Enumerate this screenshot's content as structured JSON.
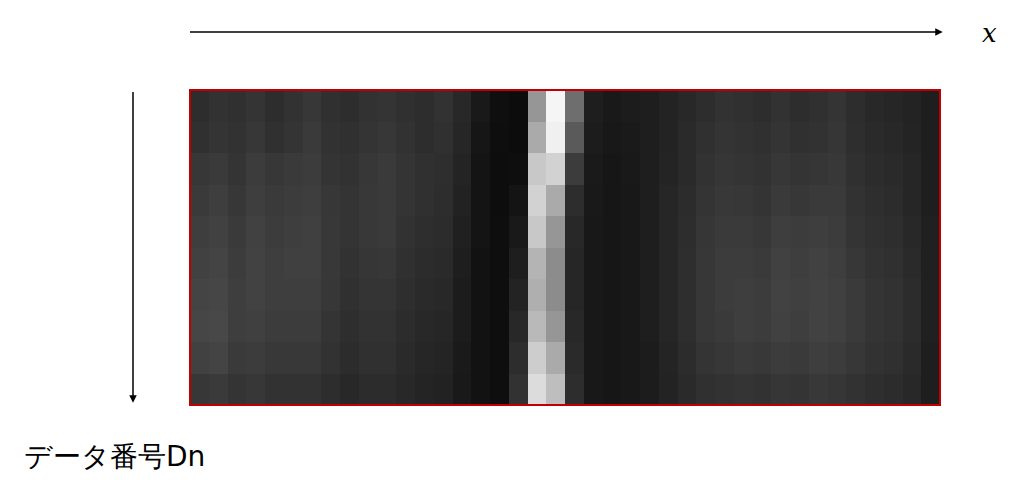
{
  "chart_data": {
    "type": "heatmap",
    "x_label": "x",
    "y_label": "データ番号Dn",
    "zlim": [
      0,
      255
    ],
    "cells": [
      [
        45,
        50,
        48,
        52,
        45,
        50,
        55,
        48,
        45,
        50,
        52,
        48,
        45,
        50,
        40,
        25,
        15,
        12,
        150,
        245,
        110,
        30,
        25,
        28,
        30,
        35,
        40,
        45,
        50,
        48,
        45,
        50,
        45,
        48,
        52,
        45,
        40,
        38,
        35,
        30
      ],
      [
        48,
        52,
        50,
        55,
        48,
        52,
        58,
        50,
        48,
        52,
        55,
        50,
        45,
        48,
        38,
        22,
        14,
        12,
        170,
        240,
        90,
        28,
        24,
        26,
        30,
        35,
        42,
        48,
        52,
        50,
        48,
        52,
        48,
        50,
        54,
        46,
        42,
        40,
        36,
        30
      ],
      [
        55,
        58,
        52,
        60,
        55,
        58,
        60,
        52,
        50,
        55,
        58,
        52,
        48,
        46,
        36,
        20,
        13,
        14,
        200,
        210,
        60,
        26,
        22,
        25,
        30,
        36,
        42,
        50,
        54,
        52,
        50,
        55,
        52,
        54,
        56,
        48,
        44,
        42,
        38,
        30
      ],
      [
        58,
        62,
        55,
        62,
        58,
        60,
        62,
        55,
        52,
        56,
        58,
        52,
        48,
        45,
        34,
        20,
        13,
        20,
        210,
        170,
        45,
        25,
        22,
        24,
        30,
        38,
        44,
        52,
        56,
        55,
        52,
        58,
        55,
        58,
        58,
        50,
        46,
        44,
        38,
        30
      ],
      [
        62,
        65,
        58,
        65,
        60,
        62,
        64,
        56,
        52,
        56,
        58,
        50,
        46,
        44,
        32,
        20,
        14,
        25,
        200,
        150,
        40,
        24,
        22,
        24,
        30,
        38,
        45,
        54,
        58,
        58,
        55,
        62,
        60,
        62,
        60,
        52,
        48,
        46,
        40,
        32
      ],
      [
        65,
        68,
        60,
        66,
        62,
        64,
        64,
        56,
        50,
        54,
        55,
        48,
        44,
        42,
        30,
        18,
        14,
        30,
        180,
        140,
        38,
        24,
        22,
        24,
        30,
        38,
        46,
        55,
        60,
        60,
        58,
        65,
        62,
        65,
        62,
        55,
        50,
        48,
        42,
        32
      ],
      [
        68,
        70,
        62,
        66,
        62,
        62,
        62,
        55,
        48,
        52,
        52,
        46,
        42,
        40,
        28,
        18,
        14,
        35,
        175,
        140,
        38,
        24,
        22,
        24,
        30,
        38,
        46,
        55,
        60,
        62,
        60,
        66,
        64,
        66,
        64,
        58,
        52,
        50,
        44,
        32
      ],
      [
        70,
        72,
        62,
        64,
        60,
        60,
        60,
        52,
        46,
        50,
        50,
        44,
        40,
        38,
        28,
        18,
        14,
        40,
        185,
        150,
        40,
        24,
        22,
        24,
        30,
        38,
        46,
        55,
        58,
        62,
        60,
        65,
        62,
        66,
        64,
        58,
        52,
        50,
        44,
        32
      ],
      [
        65,
        68,
        58,
        60,
        56,
        56,
        56,
        50,
        44,
        48,
        48,
        42,
        38,
        36,
        26,
        18,
        14,
        45,
        205,
        170,
        42,
        24,
        22,
        24,
        28,
        36,
        44,
        52,
        55,
        58,
        56,
        60,
        58,
        62,
        60,
        55,
        50,
        48,
        42,
        30
      ],
      [
        55,
        58,
        52,
        55,
        50,
        50,
        50,
        45,
        40,
        44,
        44,
        40,
        36,
        34,
        25,
        18,
        14,
        50,
        220,
        190,
        45,
        24,
        22,
        24,
        28,
        35,
        42,
        48,
        50,
        52,
        50,
        54,
        52,
        56,
        54,
        50,
        46,
        44,
        40,
        30
      ]
    ]
  }
}
